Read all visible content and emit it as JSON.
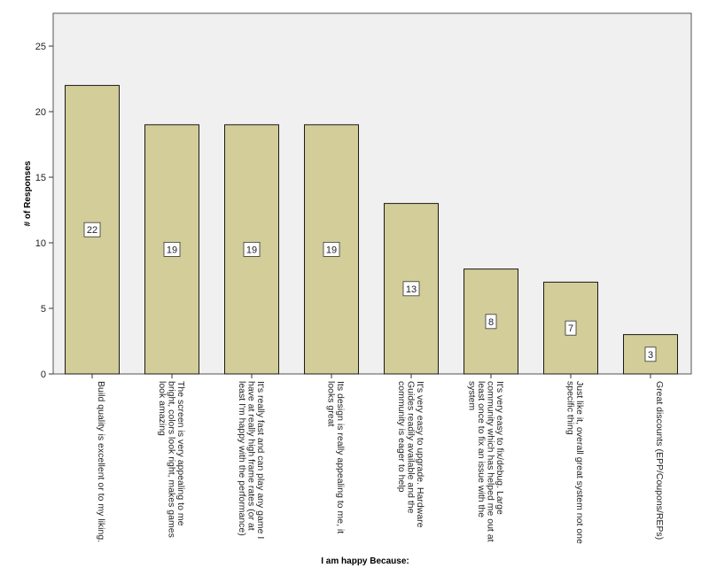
{
  "chart_data": {
    "type": "bar",
    "title": "",
    "xlabel": "I am happy Because:",
    "ylabel": "# of Responses",
    "ylim": [
      0,
      27.5
    ],
    "yticks": [
      0,
      5,
      10,
      15,
      20,
      25
    ],
    "grid": false,
    "legend": "none",
    "colors": {
      "bar_fill": "#d2cd99",
      "bar_stroke": "#1a1a1a",
      "plot_background": "#f0f0f0",
      "label_box_fill": "#ffffff"
    },
    "categories": [
      [
        "Build quality is excellent or to my liking."
      ],
      [
        "The screen is very appealing to me",
        "bright, colors look right, makes games",
        "look amazing"
      ],
      [
        "It's really fast and can play any game I",
        "have at really high frame rates (or at",
        "least I'm happy with the performance)"
      ],
      [
        "Its design is really appealing to me, it",
        "looks great"
      ],
      [
        "It's very easy to upgrade. Hardware",
        "Guides readily available and the",
        "community is eager to help"
      ],
      [
        "It's very easy to fix/debug. Large",
        "community which has helped me out at",
        "least once to fix an issue with the",
        "system"
      ],
      [
        "Just like it, overall great system not one",
        "specific thing"
      ],
      [
        "Great discounts (EPP/Coupons/REPs)"
      ]
    ],
    "values": [
      22,
      19,
      19,
      19,
      13,
      8,
      7,
      3
    ]
  }
}
